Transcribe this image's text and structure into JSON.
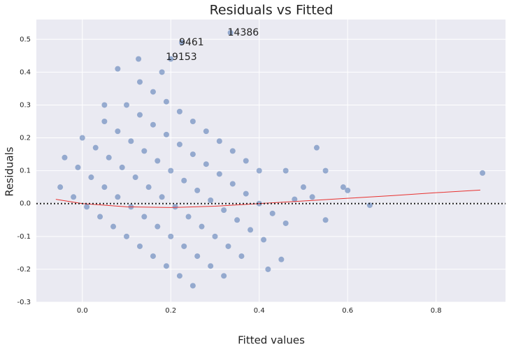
{
  "chart_data": {
    "type": "scatter",
    "title": "Residuals vs Fitted",
    "xlabel": "Fitted values",
    "ylabel": "Residuals",
    "color": "#4c72b0",
    "xlim": [
      -0.104,
      0.957
    ],
    "ylim": [
      -0.3,
      0.56
    ],
    "xticks": [
      {
        "value": 0,
        "label": "0.0"
      },
      0.2,
      0.4,
      0.6,
      0.8
    ],
    "yticks": [
      -0.3,
      -0.2,
      -0.1,
      {
        "value": 0,
        "label": "0.0"
      },
      0.1,
      0.2,
      0.3,
      0.4,
      0.5
    ],
    "grid": true,
    "hline": 0,
    "x": [
      -0.05,
      -0.02,
      0.01,
      0.04,
      0.07,
      0.1,
      0.13,
      0.16,
      0.19,
      0.22,
      0.25,
      -0.04,
      -0.01,
      0.02,
      0.05,
      0.08,
      0.11,
      0.14,
      0.17,
      0.2,
      0.23,
      0.26,
      0.29,
      0.32,
      0.0,
      0.03,
      0.06,
      0.09,
      0.12,
      0.15,
      0.18,
      0.21,
      0.24,
      0.27,
      0.3,
      0.33,
      0.36,
      0.05,
      0.08,
      0.11,
      0.14,
      0.17,
      0.2,
      0.23,
      0.26,
      0.29,
      0.32,
      0.35,
      0.38,
      0.41,
      0.1,
      0.13,
      0.16,
      0.19,
      0.22,
      0.25,
      0.28,
      0.31,
      0.34,
      0.37,
      0.4,
      0.43,
      0.46,
      0.13,
      0.16,
      0.19,
      0.22,
      0.25,
      0.28,
      0.31,
      0.34,
      0.37,
      0.4,
      0.08,
      0.127,
      0.18,
      0.2,
      0.225,
      0.335,
      0.05,
      0.5,
      0.53,
      0.55,
      0.55,
      0.65,
      0.905,
      0.6,
      0.59,
      0.45,
      0.42,
      0.46,
      0.48,
      0.52
    ],
    "values": [
      0.05,
      0.02,
      -0.01,
      -0.04,
      -0.07,
      -0.1,
      -0.13,
      -0.16,
      -0.19,
      -0.22,
      -0.25,
      0.14,
      0.11,
      0.08,
      0.05,
      0.02,
      -0.01,
      -0.04,
      -0.07,
      -0.1,
      -0.13,
      -0.16,
      -0.19,
      -0.22,
      0.2,
      0.17,
      0.14,
      0.11,
      0.08,
      0.05,
      0.02,
      -0.01,
      -0.04,
      -0.07,
      -0.1,
      -0.13,
      -0.16,
      0.25,
      0.22,
      0.19,
      0.16,
      0.13,
      0.1,
      0.07,
      0.04,
      0.01,
      -0.02,
      -0.05,
      -0.08,
      -0.11,
      0.3,
      0.27,
      0.24,
      0.21,
      0.18,
      0.15,
      0.12,
      0.09,
      0.06,
      0.03,
      0,
      -0.03,
      -0.06,
      0.37,
      0.34,
      0.31,
      0.28,
      0.25,
      0.22,
      0.19,
      0.16,
      0.13,
      0.1,
      0.41,
      0.44,
      0.4,
      0.44,
      0.49,
      0.52,
      0.3,
      0.05,
      0.17,
      -0.05,
      0.1,
      -0.005,
      0.093,
      0.04,
      0.05,
      -0.17,
      -0.2,
      0.1,
      0.013,
      0.02
    ],
    "fit_line": {
      "color": "#e8312f",
      "x": [
        -0.06,
        0,
        0.1,
        0.2,
        0.3,
        0.4,
        0.5,
        0.6,
        0.7,
        0.8,
        0.9
      ],
      "values": [
        0.013,
        0.0,
        -0.01,
        -0.012,
        -0.008,
        0.0,
        0.008,
        0.016,
        0.024,
        0.033,
        0.041
      ]
    },
    "annotations": [
      {
        "text": "14386",
        "x": 0.335,
        "y": 0.52
      },
      {
        "text": "9461",
        "x": 0.225,
        "y": 0.49
      },
      {
        "text": "19153",
        "x": 0.195,
        "y": 0.445
      }
    ]
  }
}
